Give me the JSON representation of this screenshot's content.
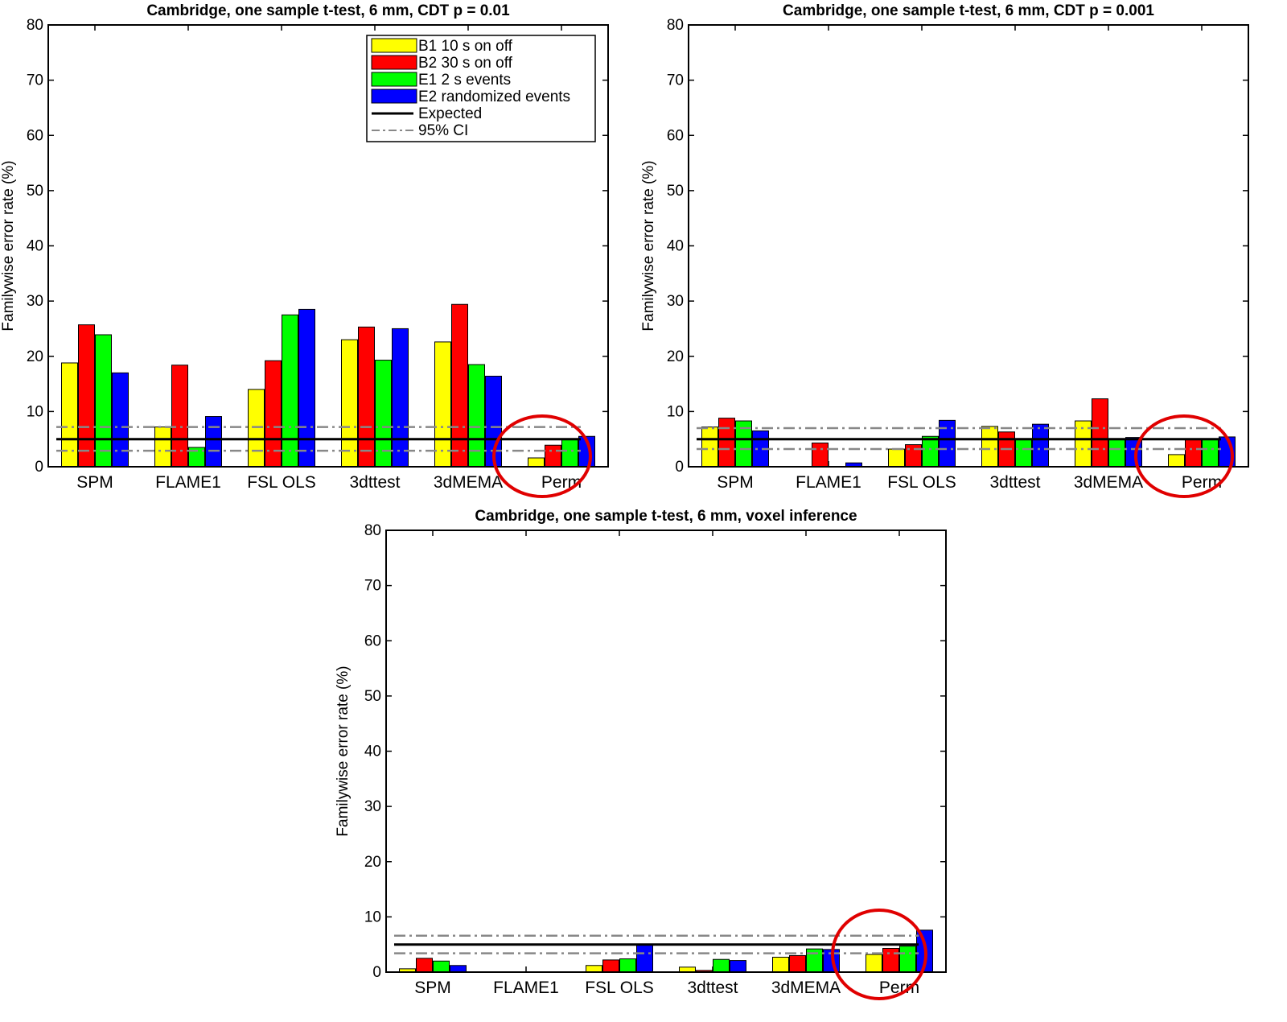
{
  "chart_data": [
    {
      "type": "bar",
      "title": "Cambridge, one sample t-test, 6 mm, CDT p = 0.01",
      "xlabel": "",
      "ylabel": "Familywise error rate (%)",
      "ylim": [
        0,
        80
      ],
      "yticks": [
        0,
        10,
        20,
        30,
        40,
        50,
        60,
        70,
        80
      ],
      "categories": [
        "SPM",
        "FLAME1",
        "FSL OLS",
        "3dttest",
        "3dMEMA",
        "Perm"
      ],
      "series": [
        {
          "name": "B1 10 s on off",
          "color": "#ffff00",
          "values": [
            18.8,
            7.2,
            14.0,
            23.0,
            22.6,
            1.6
          ]
        },
        {
          "name": "B2 30 s on off",
          "color": "#ff0000",
          "values": [
            25.7,
            18.4,
            19.2,
            25.3,
            29.4,
            3.9
          ]
        },
        {
          "name": "E1 2 s events",
          "color": "#00ff00",
          "values": [
            23.9,
            3.5,
            27.5,
            19.3,
            18.5,
            5.0
          ]
        },
        {
          "name": "E2 randomized events",
          "color": "#0000ff",
          "values": [
            17.0,
            9.1,
            28.5,
            25.0,
            16.4,
            5.5
          ]
        }
      ],
      "expected": 5,
      "ci_95": [
        2.9,
        7.2
      ],
      "legend": {
        "position": "top-right",
        "expected_label": "Expected",
        "ci_label": "95% CI"
      },
      "highlight": "Perm",
      "grid": false
    },
    {
      "type": "bar",
      "title": "Cambridge, one sample t-test, 6 mm, CDT p = 0.001",
      "xlabel": "",
      "ylabel": "Familywise error rate (%)",
      "ylim": [
        0,
        80
      ],
      "yticks": [
        0,
        10,
        20,
        30,
        40,
        50,
        60,
        70,
        80
      ],
      "categories": [
        "SPM",
        "FLAME1",
        "FSL OLS",
        "3dttest",
        "3dMEMA",
        "Perm"
      ],
      "series": [
        {
          "name": "B1 10 s on off",
          "color": "#ffff00",
          "values": [
            7.2,
            0,
            3.2,
            7.3,
            8.3,
            2.2
          ]
        },
        {
          "name": "B2 30 s on off",
          "color": "#ff0000",
          "values": [
            8.8,
            4.3,
            4.0,
            6.3,
            12.3,
            5.0
          ]
        },
        {
          "name": "E1 2 s events",
          "color": "#00ff00",
          "values": [
            8.3,
            0,
            5.5,
            5.0,
            5.0,
            5.1
          ]
        },
        {
          "name": "E2 randomized events",
          "color": "#0000ff",
          "values": [
            6.5,
            0.7,
            8.4,
            7.7,
            5.3,
            5.4
          ]
        }
      ],
      "expected": 5,
      "ci_95": [
        3.2,
        7.0
      ],
      "highlight": "Perm",
      "grid": false
    },
    {
      "type": "bar",
      "title": "Cambridge, one sample t-test, 6 mm, voxel inference",
      "xlabel": "",
      "ylabel": "Familywise error rate (%)",
      "ylim": [
        0,
        80
      ],
      "yticks": [
        0,
        10,
        20,
        30,
        40,
        50,
        60,
        70,
        80
      ],
      "categories": [
        "SPM",
        "FLAME1",
        "FSL OLS",
        "3dttest",
        "3dMEMA",
        "Perm"
      ],
      "series": [
        {
          "name": "B1 10 s on off",
          "color": "#ffff00",
          "values": [
            0.6,
            0,
            1.2,
            0.9,
            2.7,
            3.2
          ]
        },
        {
          "name": "B2 30 s on off",
          "color": "#ff0000",
          "values": [
            2.5,
            0,
            2.2,
            0.3,
            3.0,
            4.3
          ]
        },
        {
          "name": "E1 2 s events",
          "color": "#00ff00",
          "values": [
            2.0,
            0,
            2.4,
            2.3,
            4.2,
            4.7
          ]
        },
        {
          "name": "E2 randomized events",
          "color": "#0000ff",
          "values": [
            1.2,
            0,
            5.0,
            2.1,
            4.1,
            7.6
          ]
        }
      ],
      "expected": 5,
      "ci_95": [
        3.4,
        6.6
      ],
      "highlight": "Perm",
      "grid": false
    }
  ]
}
